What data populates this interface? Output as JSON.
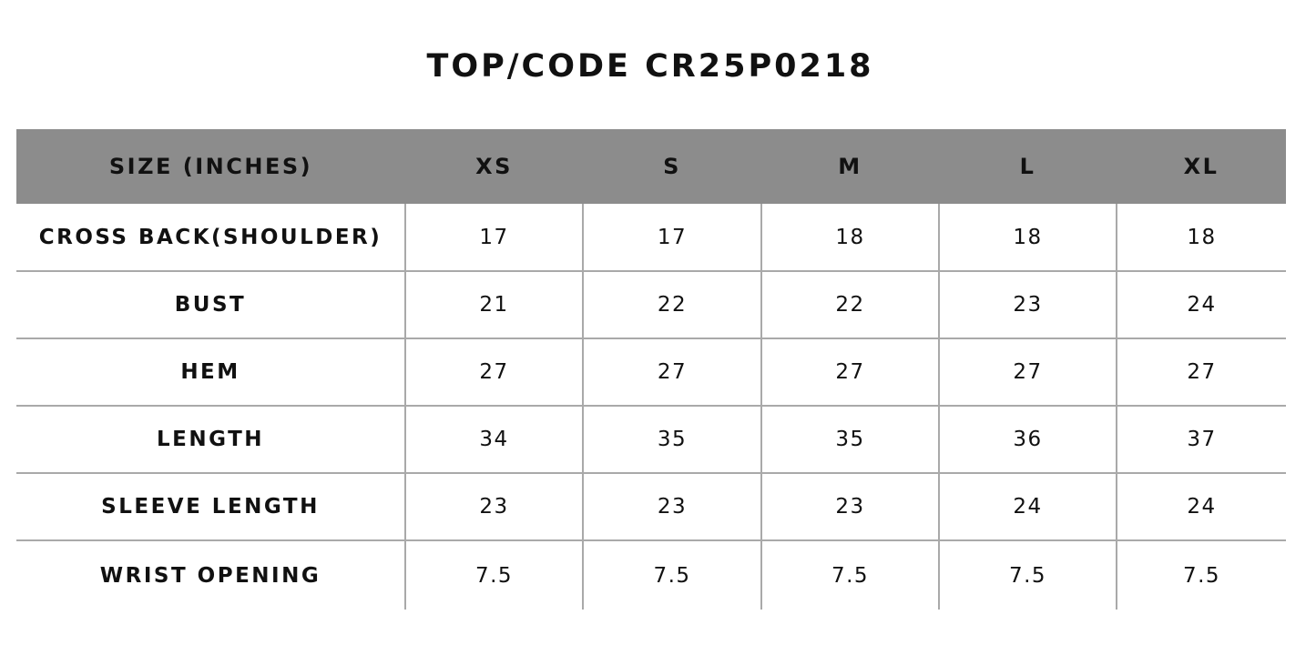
{
  "title": "TOP/CODE CR25P0218",
  "header": {
    "label": "SIZE (INCHES)",
    "sizes": [
      "XS",
      "S",
      "M",
      "L",
      "XL"
    ]
  },
  "rows": [
    {
      "label": "CROSS BACK(SHOULDER)",
      "values": [
        "17",
        "17",
        "18",
        "18",
        "18"
      ]
    },
    {
      "label": "BUST",
      "values": [
        "21",
        "22",
        "22",
        "23",
        "24"
      ]
    },
    {
      "label": "HEM",
      "values": [
        "27",
        "27",
        "27",
        "27",
        "27"
      ]
    },
    {
      "label": "LENGTH",
      "values": [
        "34",
        "35",
        "35",
        "36",
        "37"
      ]
    },
    {
      "label": "SLEEVE LENGTH",
      "values": [
        "23",
        "23",
        "23",
        "24",
        "24"
      ]
    },
    {
      "label": "WRIST OPENING",
      "values": [
        "7.5",
        "7.5",
        "7.5",
        "7.5",
        "7.5"
      ]
    }
  ],
  "colors": {
    "header_background": "#8c8c8c",
    "grid_lines": "#a9a9a9",
    "text": "#111111",
    "background": "#ffffff"
  }
}
